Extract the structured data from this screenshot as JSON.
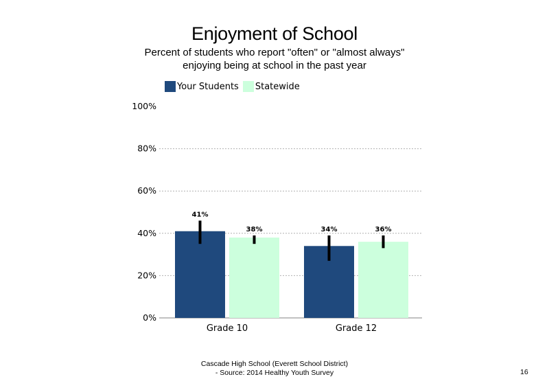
{
  "page": {
    "footer_line1": "Cascade High School (Everett School District)",
    "footer_line2": "- Source: 2014 Healthy Youth Survey",
    "page_number": "16"
  },
  "chart_data": {
    "type": "bar",
    "title": "Enjoyment of School",
    "subtitle": "Percent of students who report \"often\" or \"almost always\" enjoying being at school in the past year",
    "categories": [
      "Grade 10",
      "Grade 12"
    ],
    "series": [
      {
        "name": "Your Students",
        "color": "#1f497d",
        "values": [
          41,
          34
        ],
        "labels": [
          "41%",
          "34%"
        ],
        "error_low": [
          35,
          27
        ],
        "error_high": [
          46,
          39
        ]
      },
      {
        "name": "Statewide",
        "color": "#ccffdd",
        "values": [
          38,
          36
        ],
        "labels": [
          "38%",
          "36%"
        ],
        "error_low": [
          35,
          33
        ],
        "error_high": [
          39,
          39
        ]
      }
    ],
    "ylim": [
      0,
      100
    ],
    "yticks": [
      0,
      20,
      40,
      60,
      80,
      100
    ],
    "ytick_labels": [
      "0%",
      "20%",
      "40%",
      "60%",
      "80%",
      "100%"
    ],
    "grid": true,
    "legend_position": "top-left"
  }
}
